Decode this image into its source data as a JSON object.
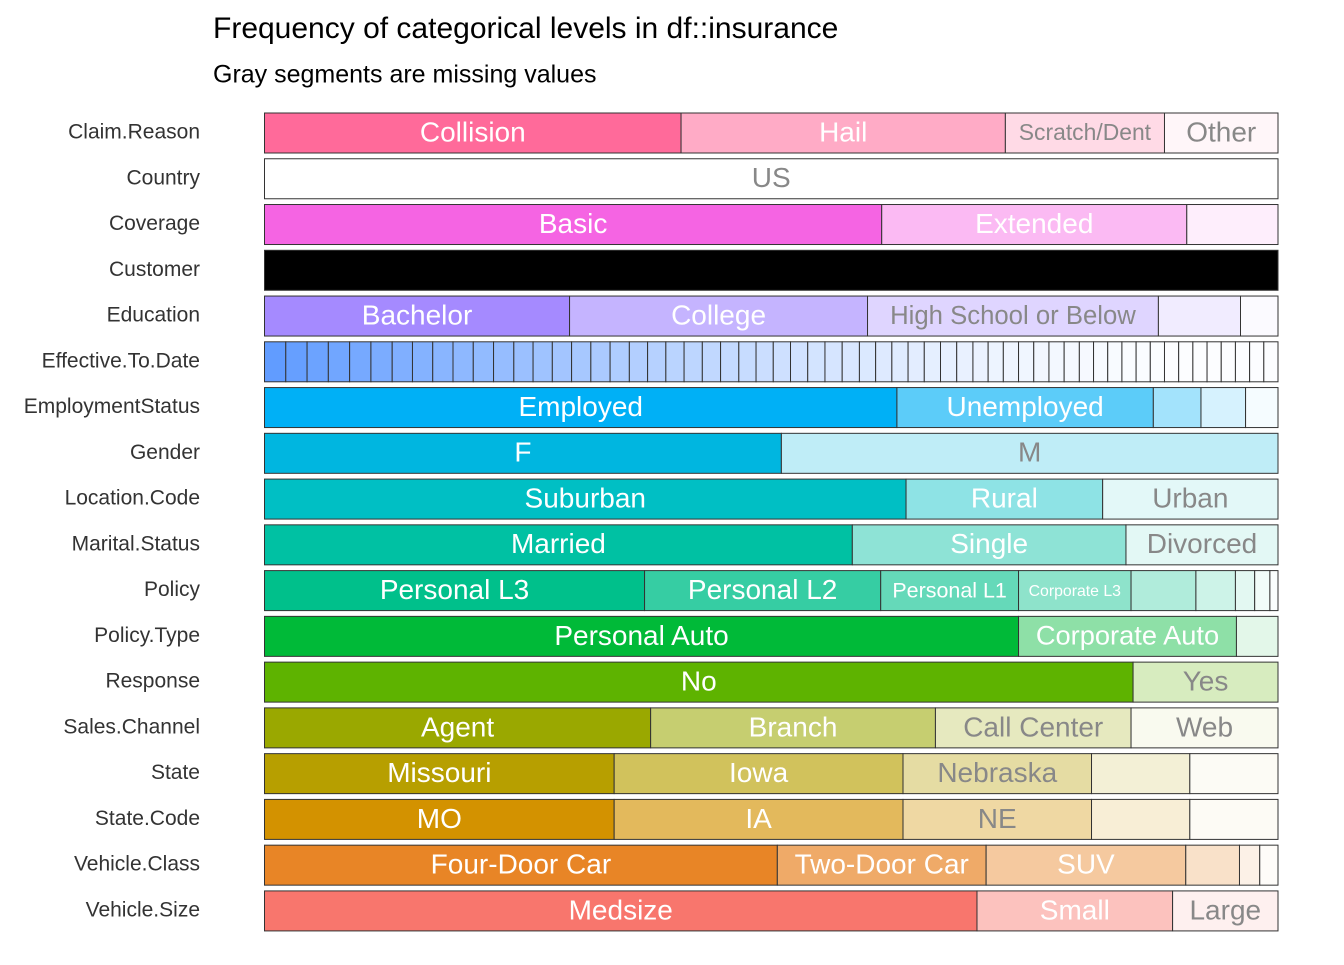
{
  "chart_data": {
    "type": "stacked-bar",
    "title": "Frequency of categorical levels in df::insurance",
    "subtitle": "Gray segments are missing values",
    "xlim": [
      0,
      100
    ],
    "rows": [
      {
        "name": "Claim.Reason",
        "color": "#ff6a9a",
        "levels": [
          "Collision",
          "Hail",
          "Scratch/Dent",
          "Other"
        ],
        "values": [
          41.1,
          32.0,
          15.7,
          11.2
        ]
      },
      {
        "name": "Country",
        "color": "#ffffff",
        "levels": [
          "US"
        ],
        "values": [
          100
        ]
      },
      {
        "name": "Coverage",
        "color": "#f564e3",
        "levels": [
          "Basic",
          "Extended",
          null
        ],
        "values": [
          60.9,
          30.1,
          9.0
        ]
      },
      {
        "name": "Customer",
        "color": "#000000",
        "levels": [
          null
        ],
        "values": [
          100
        ]
      },
      {
        "name": "Education",
        "color": "#a58aff",
        "levels": [
          "Bachelor",
          "College",
          "High School or Below",
          null,
          null
        ],
        "values": [
          30.1,
          29.4,
          28.7,
          8.1,
          3.7
        ]
      },
      {
        "name": "Effective.To.Date",
        "color": "#619cff",
        "levels": [
          null,
          null,
          null,
          null,
          null,
          null,
          null,
          null,
          null,
          null,
          null,
          null,
          null,
          null,
          null,
          null,
          null,
          null,
          null,
          null,
          null,
          null,
          null,
          null,
          null,
          null,
          null,
          null,
          null,
          null,
          null,
          null,
          null,
          null,
          null,
          null,
          null,
          null,
          null,
          null,
          null,
          null,
          null,
          null,
          null,
          null,
          null,
          null,
          null,
          null,
          null,
          null,
          null,
          null,
          null,
          null,
          null,
          null,
          null
        ],
        "values": [
          2.1,
          2.1,
          2.1,
          2.1,
          2.1,
          2.1,
          2.0,
          2.0,
          2.0,
          2.0,
          2.0,
          2.0,
          1.9,
          1.9,
          1.9,
          1.9,
          1.9,
          1.9,
          1.8,
          1.8,
          1.8,
          1.8,
          1.8,
          1.8,
          1.7,
          1.7,
          1.7,
          1.7,
          1.7,
          1.7,
          1.7,
          1.6,
          1.6,
          1.6,
          1.6,
          1.6,
          1.6,
          1.6,
          1.5,
          1.5,
          1.5,
          1.5,
          1.5,
          1.5,
          1.5,
          1.4,
          1.4,
          1.4,
          1.4,
          1.4,
          1.4,
          1.4,
          1.4,
          1.4,
          1.4,
          1.4,
          1.4,
          1.4,
          1.4
        ]
      },
      {
        "name": "EmploymentStatus",
        "color": "#00b0f6",
        "levels": [
          "Employed",
          "Unemployed",
          null,
          null,
          null
        ],
        "values": [
          62.4,
          25.3,
          4.7,
          4.4,
          3.2
        ]
      },
      {
        "name": "Gender",
        "color": "#00b6e0",
        "levels": [
          "F",
          "M"
        ],
        "values": [
          51.0,
          49.0
        ]
      },
      {
        "name": "Location.Code",
        "color": "#00bfc4",
        "levels": [
          "Suburban",
          "Rural",
          "Urban"
        ],
        "values": [
          63.3,
          19.4,
          17.3
        ]
      },
      {
        "name": "Marital.Status",
        "color": "#00c1a3",
        "levels": [
          "Married",
          "Single",
          "Divorced"
        ],
        "values": [
          58.0,
          27.0,
          15.0
        ]
      },
      {
        "name": "Policy",
        "color": "#00c08b",
        "levels": [
          "Personal L3",
          "Personal L2",
          "Personal L1",
          "Corporate L3",
          null,
          null,
          null,
          null,
          null
        ],
        "values": [
          37.5,
          23.3,
          13.6,
          11.1,
          6.4,
          3.9,
          1.9,
          1.5,
          0.8
        ]
      },
      {
        "name": "Policy.Type",
        "color": "#00ba38",
        "levels": [
          "Personal Auto",
          "Corporate Auto",
          null
        ],
        "values": [
          74.4,
          21.5,
          4.1
        ]
      },
      {
        "name": "Response",
        "color": "#5eb300",
        "levels": [
          "No",
          "Yes"
        ],
        "values": [
          85.7,
          14.3
        ]
      },
      {
        "name": "Sales.Channel",
        "color": "#9aa800",
        "levels": [
          "Agent",
          "Branch",
          "Call Center",
          "Web"
        ],
        "values": [
          38.1,
          28.1,
          19.3,
          14.5
        ]
      },
      {
        "name": "State",
        "color": "#b79f00",
        "levels": [
          "Missouri",
          "Iowa",
          "Nebraska",
          null,
          null
        ],
        "values": [
          34.5,
          28.5,
          18.6,
          9.7,
          8.7
        ]
      },
      {
        "name": "State.Code",
        "color": "#d39200",
        "levels": [
          "MO",
          "IA",
          "NE",
          null,
          null
        ],
        "values": [
          34.5,
          28.5,
          18.6,
          9.7,
          8.7
        ]
      },
      {
        "name": "Vehicle.Class",
        "color": "#e88526",
        "levels": [
          "Four-Door Car",
          "Two-Door Car",
          "SUV",
          null,
          null,
          null
        ],
        "values": [
          50.6,
          20.6,
          19.7,
          5.3,
          2.0,
          1.8
        ]
      },
      {
        "name": "Vehicle.Size",
        "color": "#f8766d",
        "levels": [
          "Medsize",
          "Small",
          "Large"
        ],
        "values": [
          70.3,
          19.3,
          10.4
        ]
      }
    ]
  }
}
